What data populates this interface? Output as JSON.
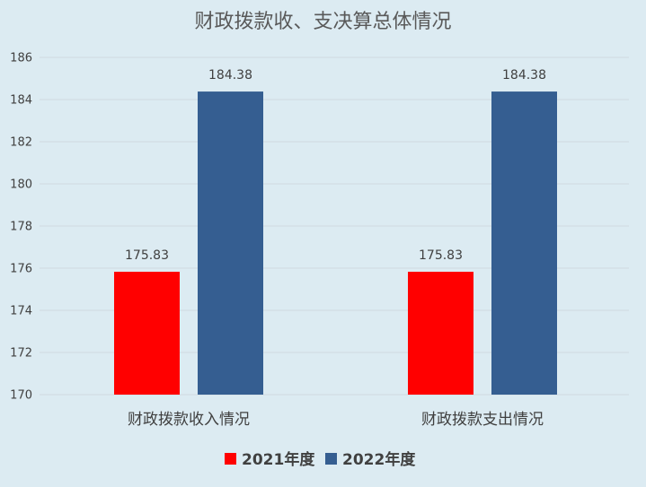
{
  "chart_data": {
    "type": "bar",
    "title": "财政拨款收、支决算总体情况",
    "categories": [
      "财政拨款收入情况",
      "财政拨款支出情况"
    ],
    "series": [
      {
        "name": "2021年度",
        "color": "#ff0000",
        "values": [
          175.83,
          175.83
        ]
      },
      {
        "name": "2022年度",
        "color": "#355e91",
        "values": [
          184.38,
          184.38
        ]
      }
    ],
    "ylim": [
      170,
      186
    ],
    "yticks": [
      170,
      172,
      174,
      176,
      178,
      180,
      182,
      184,
      186
    ],
    "grid": true,
    "legend": "bottom",
    "data_labels": [
      "175.83",
      "184.38",
      "175.83",
      "184.38"
    ]
  }
}
